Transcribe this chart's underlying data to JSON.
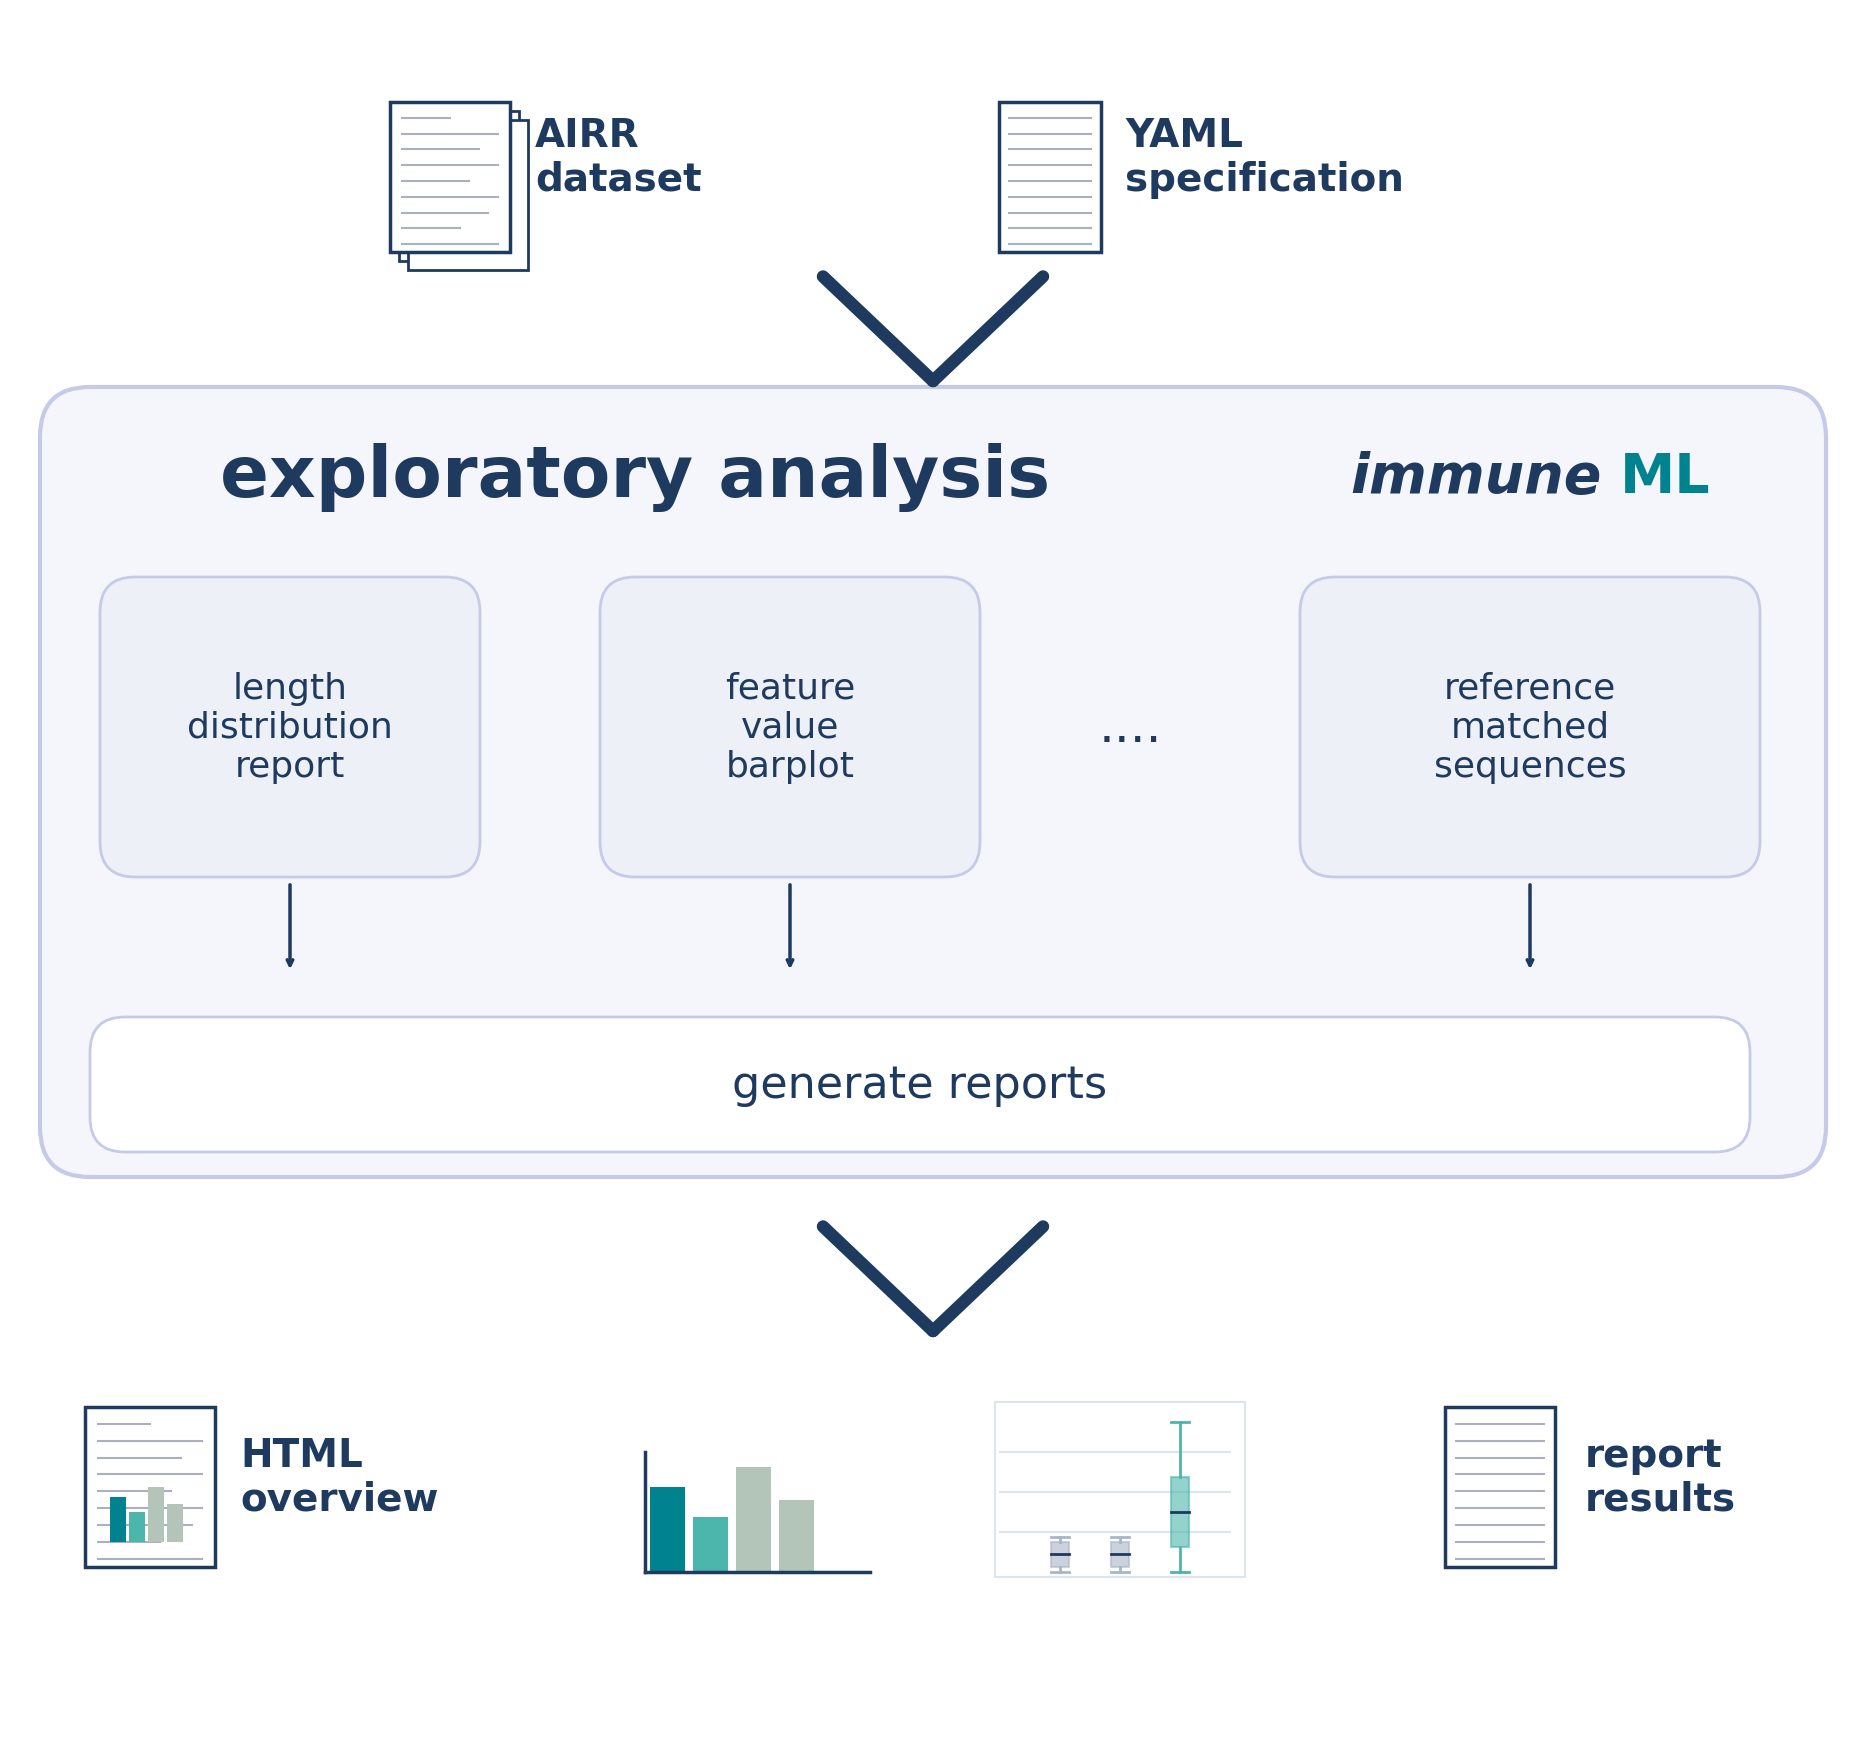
{
  "bg_color": "#ffffff",
  "dark_navy": "#1e3a5f",
  "teal": "#00838f",
  "light_teal": "#80cbc4",
  "mid_teal": "#4db6ac",
  "sage": "#90a898",
  "light_sage": "#b2c5b8",
  "box_bg": "#eef0f8",
  "box_border": "#c5cae9",
  "outer_box_bg": "#f5f6fc",
  "outer_box_border": "#c5cae9",
  "arrow_color": "#1e3a5f",
  "text_color": "#1e3a5f",
  "title": "exploratory analysis",
  "immuneml_text": "immuneML",
  "box1_text": "length\ndistribution\nreport",
  "box2_text": "feature\nvalue\nbarplot",
  "box3_text": "....",
  "box4_text": "reference\nmatched\nsequences",
  "bottom_box_text": "generate reports",
  "airr_text": "AIRR\ndataset",
  "yaml_text": "YAML\nspecification",
  "html_text": "HTML\noverview",
  "report_text": "report\nresults"
}
